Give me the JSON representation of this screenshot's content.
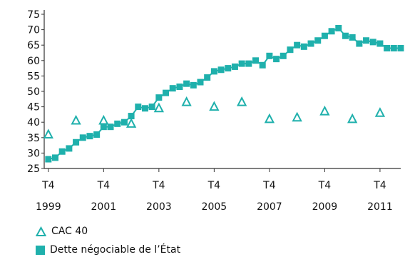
{
  "chart_data": {
    "type": "line",
    "title": "",
    "xlabel": "",
    "ylabel": "",
    "ylim": [
      25,
      75
    ],
    "yticks": [
      25,
      30,
      35,
      40,
      45,
      50,
      55,
      60,
      65,
      70,
      75
    ],
    "x_tick_labels": [
      {
        "top": "T4",
        "bottom": "1999",
        "x": 1999.75
      },
      {
        "top": "T4",
        "bottom": "2001",
        "x": 2001.75
      },
      {
        "top": "T4",
        "bottom": "2003",
        "x": 2003.75
      },
      {
        "top": "T4",
        "bottom": "2005",
        "x": 2005.75
      },
      {
        "top": "T4",
        "bottom": "2007",
        "x": 2007.75
      },
      {
        "top": "T4",
        "bottom": "2009",
        "x": 2009.75
      },
      {
        "top": "T4",
        "bottom": "2011",
        "x": 2011.75
      }
    ],
    "xlim": [
      1999.6,
      2012.5
    ],
    "colors": {
      "accent": "#1fb0ac",
      "axis": "#333333"
    },
    "legend_position": "bottom-left",
    "series": [
      {
        "name": "CAC 40",
        "marker": "triangle-open",
        "x": [
          1999.75,
          2000.75,
          2001.75,
          2002.75,
          2003.75,
          2004.75,
          2005.75,
          2006.75,
          2007.75,
          2008.75,
          2009.75,
          2010.75,
          2011.75
        ],
        "values": [
          36,
          40.5,
          40.5,
          39.5,
          44.5,
          46.5,
          45,
          46.5,
          41,
          41.5,
          43.5,
          41,
          43
        ]
      },
      {
        "name": "Dette négociable de l’État",
        "marker": "square",
        "x": [
          1999.75,
          2000.0,
          2000.25,
          2000.5,
          2000.75,
          2001.0,
          2001.25,
          2001.5,
          2001.75,
          2002.0,
          2002.25,
          2002.5,
          2002.75,
          2003.0,
          2003.25,
          2003.5,
          2003.75,
          2004.0,
          2004.25,
          2004.5,
          2004.75,
          2005.0,
          2005.25,
          2005.5,
          2005.75,
          2006.0,
          2006.25,
          2006.5,
          2006.75,
          2007.0,
          2007.25,
          2007.5,
          2007.75,
          2008.0,
          2008.25,
          2008.5,
          2008.75,
          2009.0,
          2009.25,
          2009.5,
          2009.75,
          2010.0,
          2010.25,
          2010.5,
          2010.75,
          2011.0,
          2011.25,
          2011.5,
          2011.75,
          2012.0,
          2012.25,
          2012.5
        ],
        "values": [
          28,
          28.5,
          30.5,
          31.5,
          33.5,
          35,
          35.5,
          36,
          38.5,
          38.5,
          39.5,
          40,
          42,
          45,
          44.5,
          45,
          48,
          49.5,
          51,
          51.5,
          52.5,
          52,
          53,
          54.5,
          56.5,
          57,
          57.5,
          58,
          59,
          59,
          60,
          58.5,
          61.5,
          60.5,
          61.5,
          63.5,
          65,
          64.5,
          65.5,
          66.5,
          68,
          69.5,
          70.5,
          68,
          67.5,
          65.5,
          66.5,
          66,
          65.5,
          64,
          64,
          64
        ]
      }
    ]
  }
}
